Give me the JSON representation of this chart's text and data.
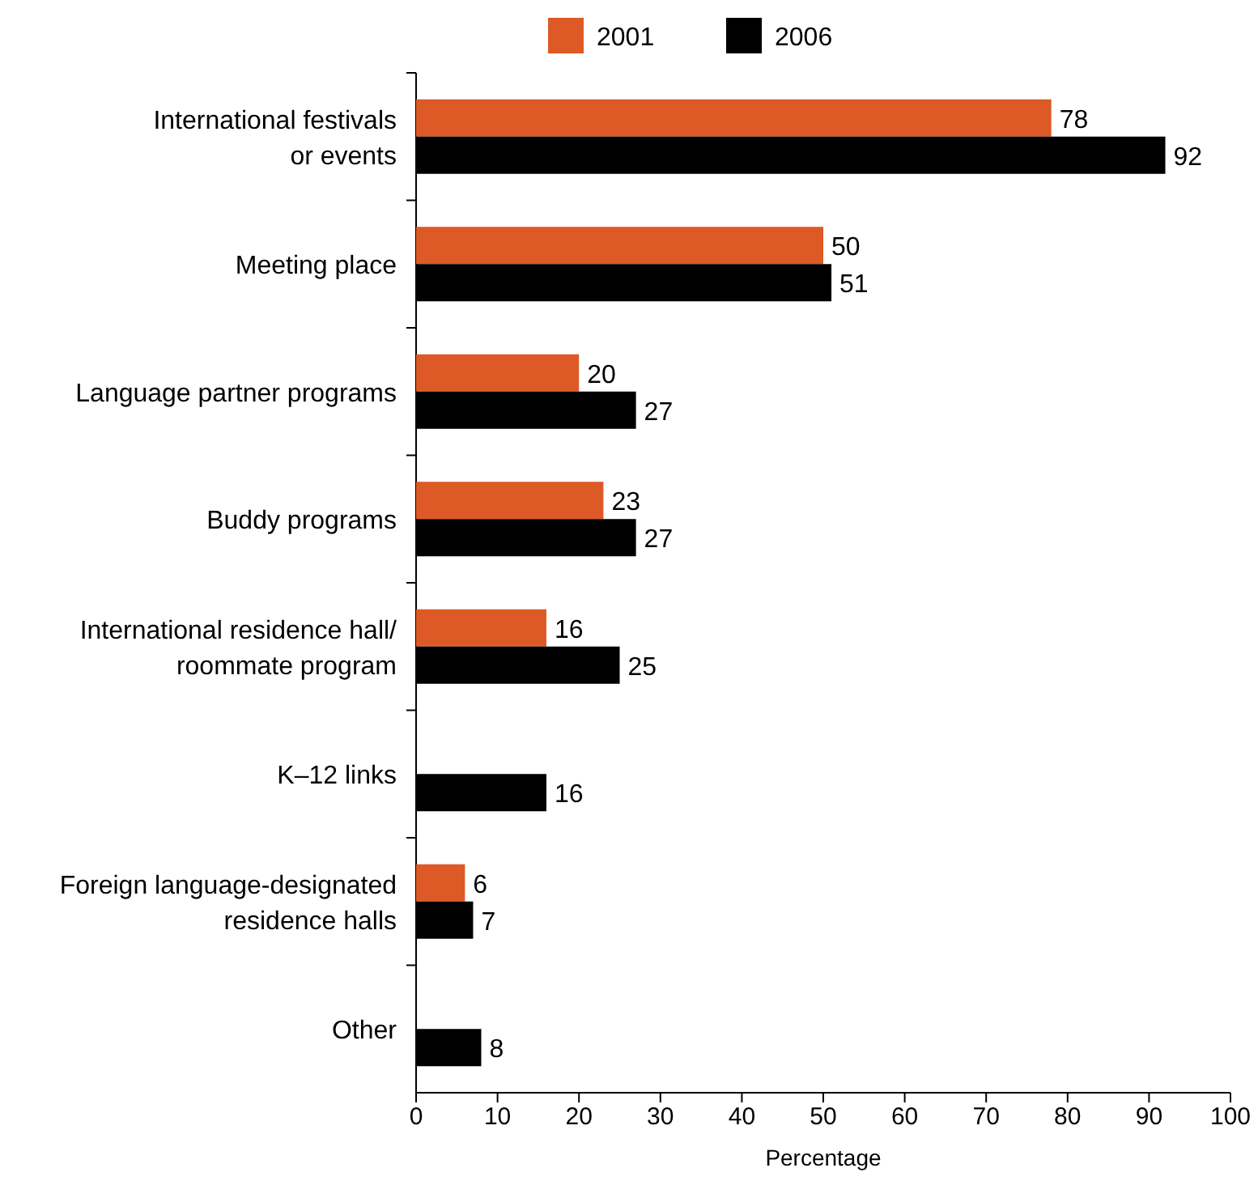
{
  "chart_data": {
    "type": "bar",
    "orientation": "horizontal",
    "xlabel": "Percentage",
    "categories": [
      "International festivals\nor events",
      "Meeting place",
      "Language partner programs",
      "Buddy programs",
      "International residence hall/\nroommate program",
      "K–12 links",
      "Foreign language-designated\nresidence halls",
      "Other"
    ],
    "series": [
      {
        "name": "2001",
        "color": "#dd5a26",
        "values": [
          78,
          50,
          20,
          23,
          16,
          null,
          6,
          null
        ]
      },
      {
        "name": "2006",
        "color": "#000000",
        "values": [
          92,
          51,
          27,
          27,
          25,
          16,
          7,
          8
        ]
      }
    ],
    "xlim": [
      0,
      100
    ],
    "xticks": [
      0,
      10,
      20,
      30,
      40,
      50,
      60,
      70,
      80,
      90,
      100
    ],
    "data_labels": true,
    "legend": "top",
    "grid": false
  }
}
